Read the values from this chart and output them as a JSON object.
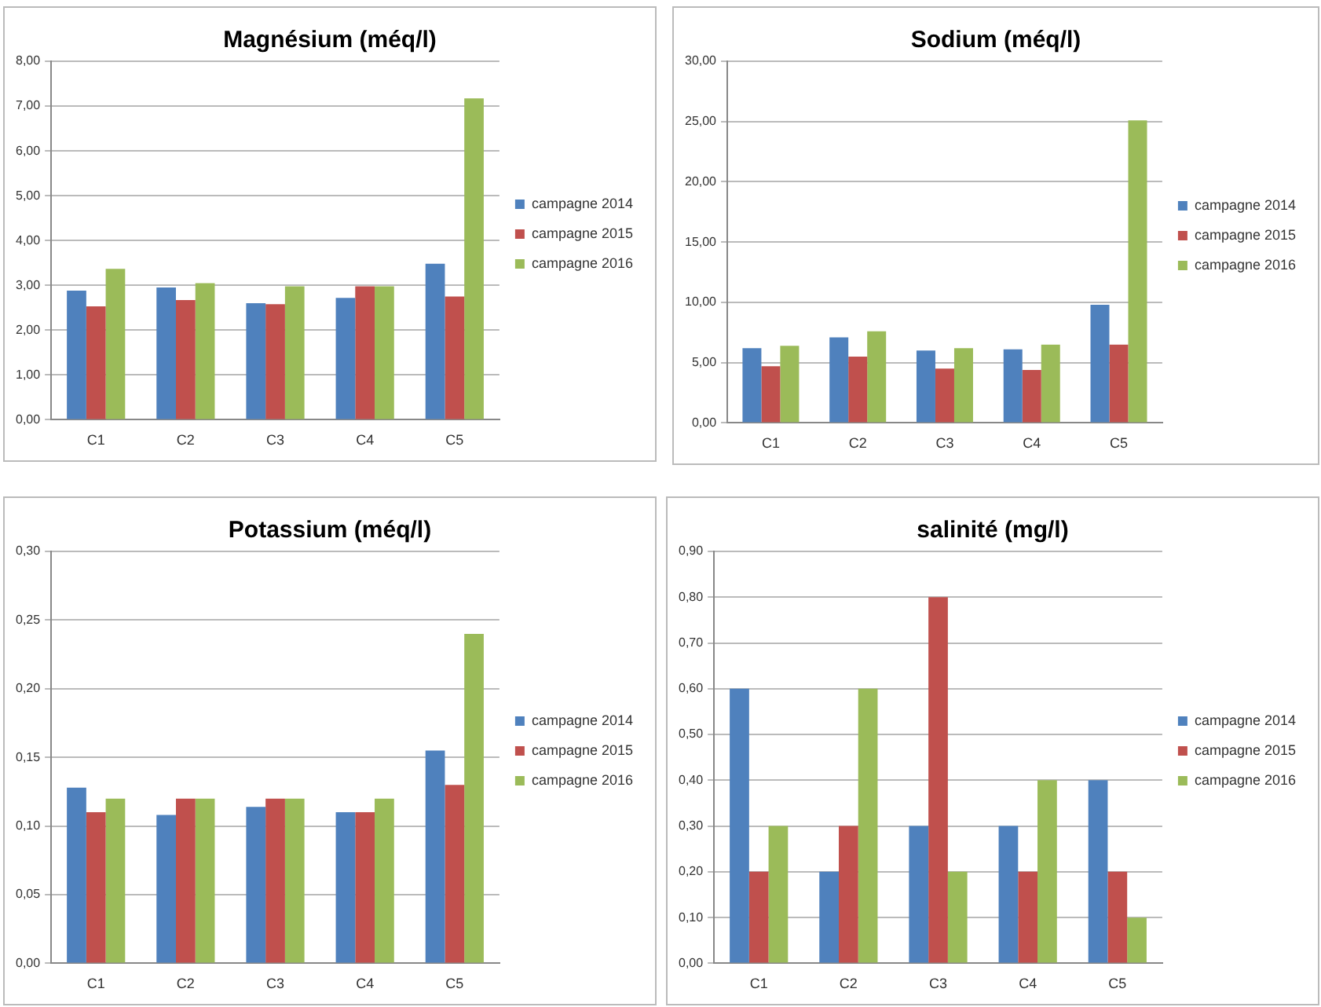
{
  "chart_data": [
    {
      "type": "bar",
      "title": "Magnésium (méq/l)",
      "categories": [
        "C1",
        "C2",
        "C3",
        "C4",
        "C5"
      ],
      "ylim": [
        0,
        8
      ],
      "yticks": [
        {
          "value": 0,
          "label": "0,00"
        },
        {
          "value": 1,
          "label": "1,00"
        },
        {
          "value": 2,
          "label": "2,00"
        },
        {
          "value": 3,
          "label": "3,00"
        },
        {
          "value": 4,
          "label": "4,00"
        },
        {
          "value": 5,
          "label": "5,00"
        },
        {
          "value": 6,
          "label": "6,00"
        },
        {
          "value": 7,
          "label": "7,00"
        },
        {
          "value": 8,
          "label": "8,00"
        }
      ],
      "grid": "y",
      "legend": "right",
      "series": [
        {
          "name": "campagne 2014",
          "color": "#4f81bd",
          "values": [
            2.88,
            2.95,
            2.6,
            2.72,
            3.48
          ]
        },
        {
          "name": "campagne 2015",
          "color": "#c0504d",
          "values": [
            2.53,
            2.67,
            2.58,
            2.98,
            2.75
          ]
        },
        {
          "name": "campagne 2016",
          "color": "#9bbb59",
          "values": [
            3.37,
            3.05,
            2.98,
            2.98,
            7.17
          ]
        }
      ]
    },
    {
      "type": "bar",
      "title": "Sodium (méq/l)",
      "categories": [
        "C1",
        "C2",
        "C3",
        "C4",
        "C5"
      ],
      "ylim": [
        0,
        30
      ],
      "yticks": [
        {
          "value": 0,
          "label": "0,00"
        },
        {
          "value": 5,
          "label": "5,00"
        },
        {
          "value": 10,
          "label": "10,00"
        },
        {
          "value": 15,
          "label": "15,00"
        },
        {
          "value": 20,
          "label": "20,00"
        },
        {
          "value": 25,
          "label": "25,00"
        },
        {
          "value": 30,
          "label": "30,00"
        }
      ],
      "grid": "y",
      "legend": "right",
      "series": [
        {
          "name": "campagne 2014",
          "color": "#4f81bd",
          "values": [
            6.2,
            7.1,
            6.0,
            6.1,
            9.8
          ]
        },
        {
          "name": "campagne 2015",
          "color": "#c0504d",
          "values": [
            4.7,
            5.5,
            4.5,
            4.4,
            6.5
          ]
        },
        {
          "name": "campagne 2016",
          "color": "#9bbb59",
          "values": [
            6.4,
            7.6,
            6.2,
            6.5,
            25.1
          ]
        }
      ]
    },
    {
      "type": "bar",
      "title": "Potassium (méq/l)",
      "categories": [
        "C1",
        "C2",
        "C3",
        "C4",
        "C5"
      ],
      "ylim": [
        0,
        0.3
      ],
      "yticks": [
        {
          "value": 0,
          "label": "0,00"
        },
        {
          "value": 0.05,
          "label": "0,05"
        },
        {
          "value": 0.1,
          "label": "0,10"
        },
        {
          "value": 0.15,
          "label": "0,15"
        },
        {
          "value": 0.2,
          "label": "0,20"
        },
        {
          "value": 0.25,
          "label": "0,25"
        },
        {
          "value": 0.3,
          "label": "0,30"
        }
      ],
      "grid": "y",
      "legend": "right",
      "series": [
        {
          "name": "campagne 2014",
          "color": "#4f81bd",
          "values": [
            0.128,
            0.108,
            0.114,
            0.11,
            0.155
          ]
        },
        {
          "name": "campagne 2015",
          "color": "#c0504d",
          "values": [
            0.11,
            0.12,
            0.12,
            0.11,
            0.13
          ]
        },
        {
          "name": "campagne 2016",
          "color": "#9bbb59",
          "values": [
            0.12,
            0.12,
            0.12,
            0.12,
            0.24
          ]
        }
      ]
    },
    {
      "type": "bar",
      "title": "salinité (mg/l)",
      "categories": [
        "C1",
        "C2",
        "C3",
        "C4",
        "C5"
      ],
      "ylim": [
        0,
        0.9
      ],
      "yticks": [
        {
          "value": 0,
          "label": "0,00"
        },
        {
          "value": 0.1,
          "label": "0,10"
        },
        {
          "value": 0.2,
          "label": "0,20"
        },
        {
          "value": 0.3,
          "label": "0,30"
        },
        {
          "value": 0.4,
          "label": "0,40"
        },
        {
          "value": 0.5,
          "label": "0,50"
        },
        {
          "value": 0.6,
          "label": "0,60"
        },
        {
          "value": 0.7,
          "label": "0,70"
        },
        {
          "value": 0.8,
          "label": "0,80"
        },
        {
          "value": 0.9,
          "label": "0,90"
        }
      ],
      "grid": "y",
      "legend": "right",
      "series": [
        {
          "name": "campagne 2014",
          "color": "#4f81bd",
          "values": [
            0.6,
            0.2,
            0.3,
            0.3,
            0.4
          ]
        },
        {
          "name": "campagne 2015",
          "color": "#c0504d",
          "values": [
            0.2,
            0.3,
            0.8,
            0.2,
            0.2
          ]
        },
        {
          "name": "campagne 2016",
          "color": "#9bbb59",
          "values": [
            0.3,
            0.6,
            0.2,
            0.4,
            0.1
          ]
        }
      ]
    }
  ]
}
